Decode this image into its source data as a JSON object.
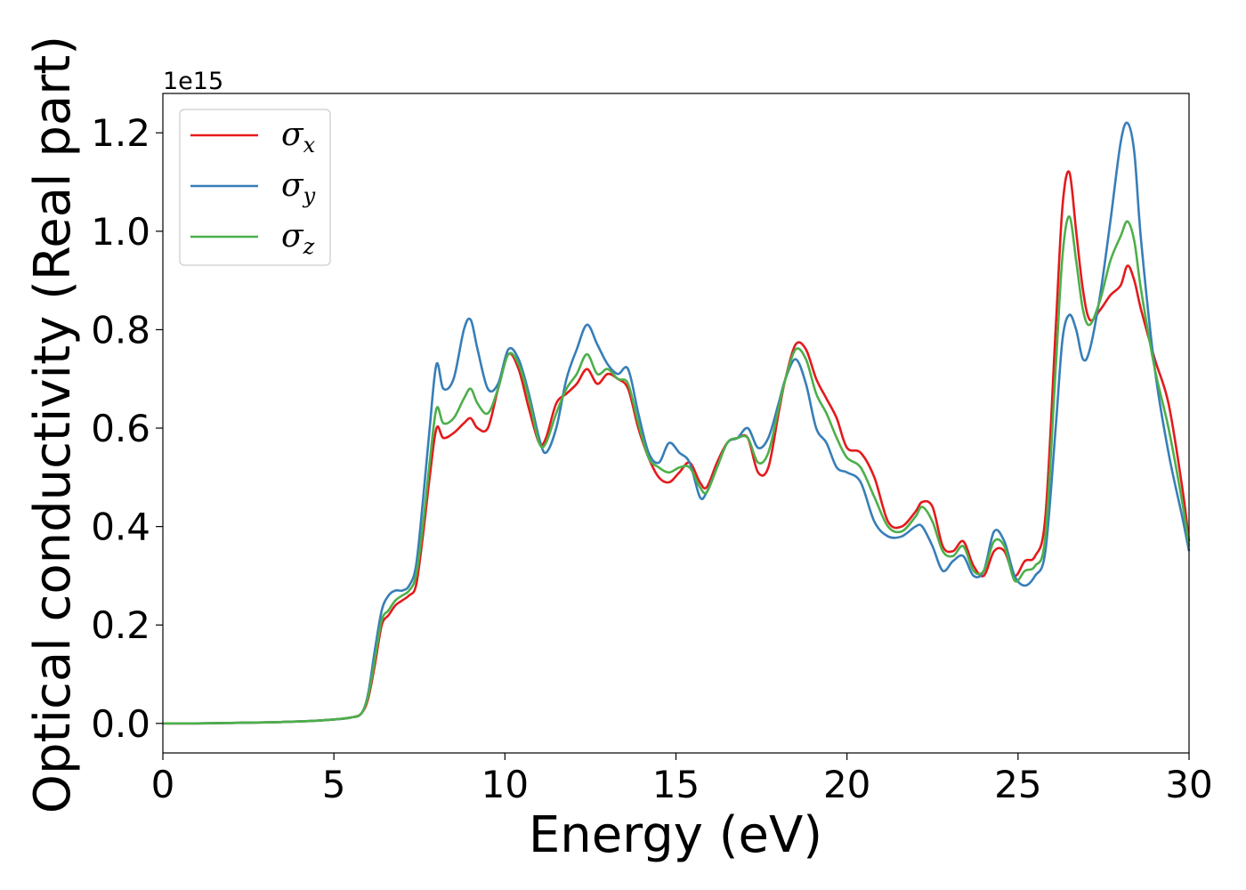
{
  "chart_data": {
    "type": "line",
    "title": "",
    "xlabel": "Energy (eV)",
    "ylabel": "Optical conductivity (Real part)",
    "y_offset_text": "1e15",
    "y_scale_multiplier": 1000000000000000.0,
    "xlim": [
      0,
      30
    ],
    "ylim": [
      -0.06,
      1.28
    ],
    "xticks": [
      0,
      5,
      10,
      15,
      20,
      25,
      30
    ],
    "xtick_labels": [
      "0",
      "5",
      "10",
      "15",
      "20",
      "25",
      "30"
    ],
    "yticks": [
      0.0,
      0.2,
      0.4,
      0.6,
      0.8,
      1.0,
      1.2
    ],
    "ytick_labels": [
      "0.0",
      "0.2",
      "0.4",
      "0.6",
      "0.8",
      "1.0",
      "1.2"
    ],
    "grid": false,
    "legend_placement": "upper-left",
    "x": [
      0,
      1,
      2,
      3,
      4,
      5,
      5.5,
      5.8,
      6.0,
      6.2,
      6.4,
      6.6,
      6.8,
      7.0,
      7.2,
      7.4,
      7.6,
      7.8,
      8.0,
      8.2,
      8.5,
      8.8,
      9.0,
      9.2,
      9.5,
      9.8,
      10.1,
      10.4,
      10.7,
      11.0,
      11.2,
      11.5,
      11.8,
      12.1,
      12.4,
      12.7,
      13.0,
      13.3,
      13.6,
      13.9,
      14.2,
      14.5,
      14.8,
      15.1,
      15.4,
      15.7,
      15.9,
      16.2,
      16.5,
      16.8,
      17.1,
      17.4,
      17.7,
      18.0,
      18.2,
      18.5,
      18.8,
      19.1,
      19.4,
      19.7,
      20.0,
      20.4,
      20.8,
      21.2,
      21.6,
      22.0,
      22.2,
      22.5,
      22.8,
      23.1,
      23.4,
      23.7,
      24.0,
      24.3,
      24.6,
      24.9,
      25.2,
      25.5,
      25.8,
      26.1,
      26.3,
      26.5,
      26.7,
      26.9,
      27.1,
      27.4,
      27.7,
      28.0,
      28.2,
      28.4,
      28.6,
      29.0,
      29.4,
      29.8,
      30.0
    ],
    "series": [
      {
        "name": "σx",
        "base": "σ",
        "sub": "x",
        "color": "#e41a1c",
        "values": [
          0,
          0,
          0.001,
          0.002,
          0.004,
          0.008,
          0.012,
          0.02,
          0.05,
          0.12,
          0.2,
          0.22,
          0.24,
          0.25,
          0.26,
          0.28,
          0.38,
          0.5,
          0.6,
          0.58,
          0.59,
          0.61,
          0.62,
          0.6,
          0.6,
          0.68,
          0.75,
          0.72,
          0.64,
          0.57,
          0.58,
          0.65,
          0.67,
          0.69,
          0.72,
          0.69,
          0.71,
          0.7,
          0.68,
          0.6,
          0.54,
          0.5,
          0.49,
          0.51,
          0.53,
          0.49,
          0.48,
          0.53,
          0.57,
          0.58,
          0.58,
          0.51,
          0.52,
          0.63,
          0.7,
          0.77,
          0.76,
          0.7,
          0.66,
          0.62,
          0.56,
          0.55,
          0.5,
          0.41,
          0.4,
          0.43,
          0.45,
          0.44,
          0.36,
          0.35,
          0.37,
          0.32,
          0.3,
          0.35,
          0.35,
          0.3,
          0.33,
          0.34,
          0.42,
          0.8,
          1.05,
          1.12,
          1.0,
          0.88,
          0.82,
          0.84,
          0.87,
          0.89,
          0.93,
          0.9,
          0.84,
          0.74,
          0.65,
          0.48,
          0.37
        ]
      },
      {
        "name": "σy",
        "base": "σ",
        "sub": "y",
        "color": "#377eb8",
        "values": [
          0,
          0,
          0.001,
          0.002,
          0.004,
          0.008,
          0.012,
          0.02,
          0.06,
          0.15,
          0.23,
          0.26,
          0.27,
          0.27,
          0.28,
          0.32,
          0.45,
          0.6,
          0.73,
          0.68,
          0.7,
          0.8,
          0.82,
          0.76,
          0.68,
          0.69,
          0.76,
          0.74,
          0.67,
          0.58,
          0.55,
          0.6,
          0.7,
          0.76,
          0.81,
          0.77,
          0.73,
          0.71,
          0.72,
          0.63,
          0.55,
          0.53,
          0.57,
          0.55,
          0.53,
          0.46,
          0.47,
          0.52,
          0.57,
          0.58,
          0.6,
          0.56,
          0.58,
          0.65,
          0.7,
          0.74,
          0.69,
          0.6,
          0.57,
          0.52,
          0.51,
          0.49,
          0.41,
          0.38,
          0.38,
          0.4,
          0.4,
          0.36,
          0.31,
          0.33,
          0.34,
          0.3,
          0.31,
          0.39,
          0.37,
          0.3,
          0.28,
          0.3,
          0.35,
          0.6,
          0.78,
          0.83,
          0.8,
          0.74,
          0.76,
          0.87,
          1.02,
          1.18,
          1.22,
          1.16,
          0.98,
          0.72,
          0.55,
          0.42,
          0.35
        ]
      },
      {
        "name": "σz",
        "base": "σ",
        "sub": "z",
        "color": "#4daf4a",
        "values": [
          0,
          0,
          0.001,
          0.002,
          0.004,
          0.008,
          0.012,
          0.02,
          0.055,
          0.13,
          0.21,
          0.23,
          0.25,
          0.26,
          0.27,
          0.3,
          0.4,
          0.53,
          0.64,
          0.61,
          0.62,
          0.66,
          0.68,
          0.65,
          0.63,
          0.68,
          0.75,
          0.73,
          0.66,
          0.57,
          0.57,
          0.63,
          0.68,
          0.71,
          0.75,
          0.71,
          0.72,
          0.7,
          0.69,
          0.61,
          0.54,
          0.52,
          0.51,
          0.52,
          0.52,
          0.48,
          0.47,
          0.52,
          0.57,
          0.58,
          0.58,
          0.53,
          0.55,
          0.64,
          0.7,
          0.76,
          0.74,
          0.67,
          0.63,
          0.58,
          0.54,
          0.52,
          0.46,
          0.4,
          0.39,
          0.42,
          0.44,
          0.41,
          0.35,
          0.34,
          0.36,
          0.31,
          0.31,
          0.37,
          0.36,
          0.29,
          0.31,
          0.32,
          0.38,
          0.72,
          0.95,
          1.03,
          0.94,
          0.84,
          0.81,
          0.86,
          0.94,
          0.99,
          1.02,
          0.98,
          0.88,
          0.72,
          0.6,
          0.45,
          0.36
        ]
      }
    ]
  }
}
